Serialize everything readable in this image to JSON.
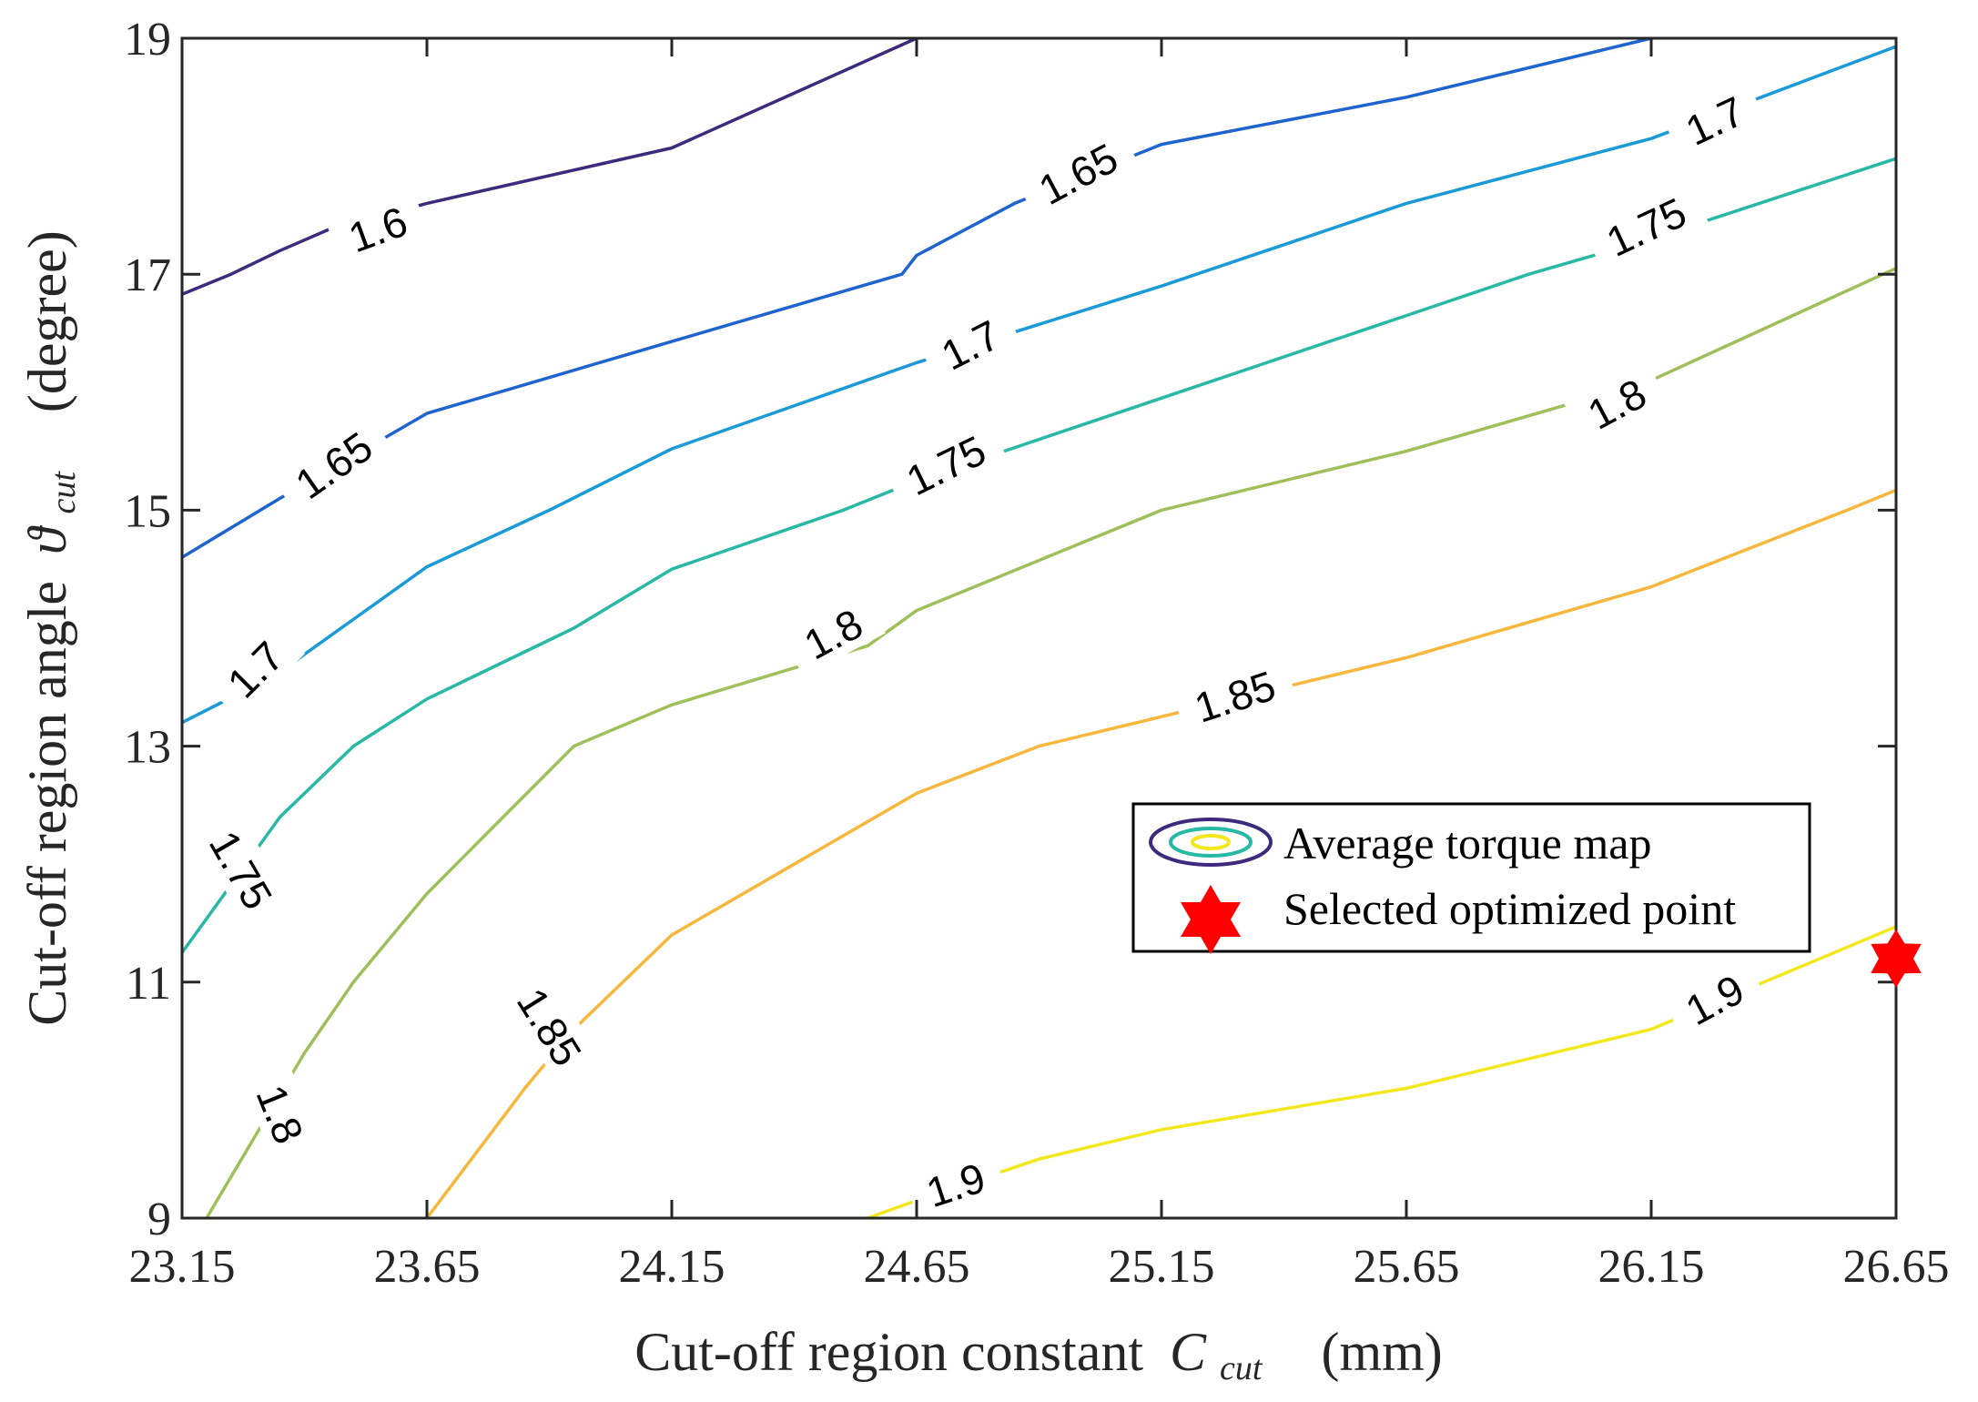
{
  "chart_data": {
    "type": "contour",
    "title": "",
    "xlabel": "Cut-off region constant",
    "xlabel_symbol": "C",
    "xlabel_subscript": "cut",
    "xlabel_unit": "(mm)",
    "ylabel": "Cut-off region angle",
    "ylabel_symbol": "ϑ",
    "ylabel_subscript": "cut",
    "ylabel_unit": "(degree)",
    "xlim": [
      23.15,
      26.65
    ],
    "ylim": [
      9,
      19
    ],
    "xticks": [
      23.15,
      23.65,
      24.15,
      24.65,
      25.15,
      25.65,
      26.15,
      26.65
    ],
    "xtick_labels": [
      "23.15",
      "23.65",
      "24.15",
      "24.65",
      "25.15",
      "25.65",
      "26.15",
      "26.65"
    ],
    "yticks": [
      9,
      11,
      13,
      15,
      17,
      19
    ],
    "ytick_labels": [
      "9",
      "11",
      "13",
      "15",
      "17",
      "19"
    ],
    "grid": false,
    "legend": {
      "position": "center-right",
      "entries": [
        "Average torque map",
        "Selected optimized point"
      ]
    },
    "colors": {
      "1.6": "#3d2a7d",
      "1.65": "#1f63cf",
      "1.7": "#1a9ad6",
      "1.75": "#28b8a6",
      "1.8": "#9fbf5a",
      "1.85": "#f6b73c",
      "1.9": "#f2e81c",
      "marker": "#ff0000"
    },
    "levels": [
      {
        "level": 1.6,
        "label": "1.6",
        "segments": [
          {
            "x": [
              23.15,
              23.25,
              23.35,
              23.45,
              23.65,
              24.15,
              24.65
            ],
            "y": [
              16.83,
              17.0,
              17.2,
              17.38,
              17.6,
              18.07,
              19.0
            ]
          }
        ],
        "labels": [
          {
            "text": "1.6",
            "x": 23.55,
            "y": 17.38,
            "angle": 20
          }
        ]
      },
      {
        "level": 1.65,
        "label": "1.65",
        "segments": [
          {
            "x": [
              23.15,
              23.35,
              23.65,
              24.15,
              24.62,
              24.65,
              24.85,
              25.15,
              25.65,
              26.15
            ],
            "y": [
              14.6,
              15.1,
              15.82,
              16.43,
              17.0,
              17.16,
              17.6,
              18.1,
              18.5,
              19.0
            ]
          }
        ],
        "labels": [
          {
            "text": "1.65",
            "x": 23.46,
            "y": 15.38,
            "angle": 35
          },
          {
            "text": "1.65",
            "x": 24.98,
            "y": 17.85,
            "angle": 28
          }
        ]
      },
      {
        "level": 1.7,
        "label": "1.7",
        "segments": [
          {
            "x": [
              23.15,
              23.34,
              23.65,
              23.9,
              24.15,
              24.65,
              25.15,
              25.65,
              26.15,
              26.65
            ],
            "y": [
              13.2,
              13.6,
              14.52,
              15.0,
              15.52,
              16.25,
              16.9,
              17.6,
              18.15,
              18.93
            ]
          }
        ],
        "labels": [
          {
            "text": "1.7",
            "x": 23.3,
            "y": 13.65,
            "angle": 45
          },
          {
            "text": "1.7",
            "x": 24.76,
            "y": 16.4,
            "angle": 27
          },
          {
            "text": "1.7",
            "x": 26.28,
            "y": 18.3,
            "angle": 25
          }
        ]
      },
      {
        "level": 1.75,
        "label": "1.75",
        "segments": [
          {
            "x": [
              23.15,
              23.35,
              23.5,
              23.65,
              23.95,
              24.15,
              24.5,
              24.65,
              25.15,
              25.65,
              25.9,
              26.15,
              26.65
            ],
            "y": [
              11.25,
              12.4,
              13.0,
              13.4,
              14.0,
              14.5,
              15.0,
              15.25,
              15.95,
              16.65,
              17.0,
              17.3,
              17.98
            ]
          }
        ],
        "labels": [
          {
            "text": "1.75",
            "x": 23.27,
            "y": 11.95,
            "angle": -60
          },
          {
            "text": "1.75",
            "x": 24.71,
            "y": 15.38,
            "angle": 26
          },
          {
            "text": "1.75",
            "x": 26.14,
            "y": 17.4,
            "angle": 25
          }
        ]
      },
      {
        "level": 1.8,
        "label": "1.8",
        "segments": [
          {
            "x": [
              23.2,
              23.4,
              23.5,
              23.65,
              23.95,
              24.15,
              24.55,
              24.65,
              25.15,
              25.65,
              25.9,
              26.15,
              26.65
            ],
            "y": [
              9.0,
              10.4,
              11.0,
              11.75,
              13.0,
              13.35,
              13.85,
              14.15,
              15.0,
              15.5,
              15.8,
              16.1,
              17.05
            ]
          }
        ],
        "labels": [
          {
            "text": "1.8",
            "x": 23.35,
            "y": 9.88,
            "angle": -68
          },
          {
            "text": "1.8",
            "x": 24.48,
            "y": 13.95,
            "angle": 28
          },
          {
            "text": "1.8",
            "x": 26.08,
            "y": 15.9,
            "angle": 28
          }
        ]
      },
      {
        "level": 1.85,
        "label": "1.85",
        "segments": [
          {
            "x": [
              23.65,
              23.85,
              23.95,
              24.15,
              24.65,
              24.9,
              25.15,
              25.65,
              26.15,
              26.55,
              26.65
            ],
            "y": [
              9.0,
              10.1,
              10.6,
              11.4,
              12.6,
              13.0,
              13.25,
              13.75,
              14.35,
              15.0,
              15.17
            ]
          }
        ],
        "labels": [
          {
            "text": "1.85",
            "x": 23.9,
            "y": 10.62,
            "angle": -58
          },
          {
            "text": "1.85",
            "x": 25.3,
            "y": 13.42,
            "angle": 18
          }
        ]
      },
      {
        "level": 1.9,
        "label": "1.9",
        "segments": [
          {
            "x": [
              24.55,
              24.65,
              24.9,
              25.15,
              25.65,
              26.15,
              26.65
            ],
            "y": [
              9.0,
              9.15,
              9.5,
              9.75,
              10.1,
              10.6,
              11.47
            ]
          }
        ],
        "labels": [
          {
            "text": "1.9",
            "x": 24.73,
            "y": 9.28,
            "angle": 18
          },
          {
            "text": "1.9",
            "x": 26.28,
            "y": 10.85,
            "angle": 28
          }
        ]
      }
    ],
    "highlight_point": {
      "x": 26.65,
      "y": 11.2,
      "label": "Selected optimized point"
    }
  }
}
